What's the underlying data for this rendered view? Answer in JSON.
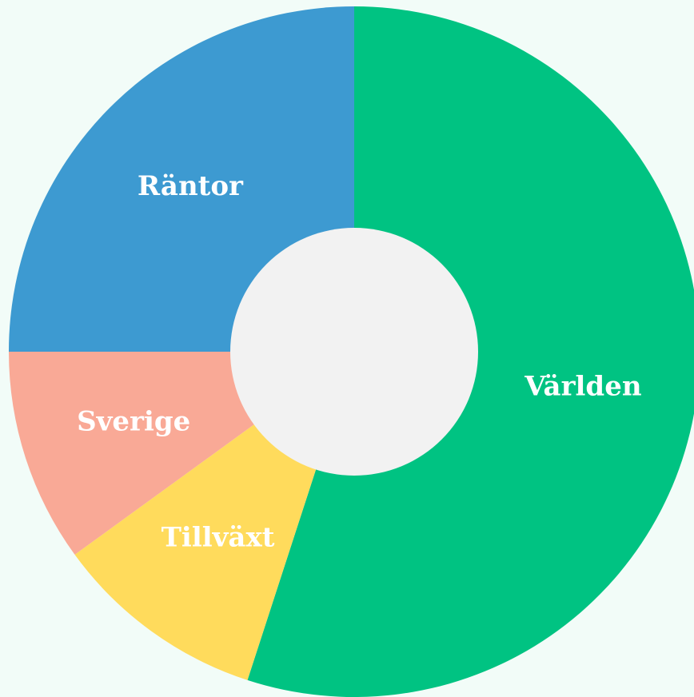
{
  "chart_data": {
    "type": "donut",
    "categories": [
      "Världen",
      "Tillväxt",
      "Sverige",
      "Räntor"
    ],
    "values": [
      55,
      10,
      10,
      25
    ],
    "colors": [
      "#00c382",
      "#ffdb5c",
      "#f9a996",
      "#3d9ad1"
    ]
  }
}
